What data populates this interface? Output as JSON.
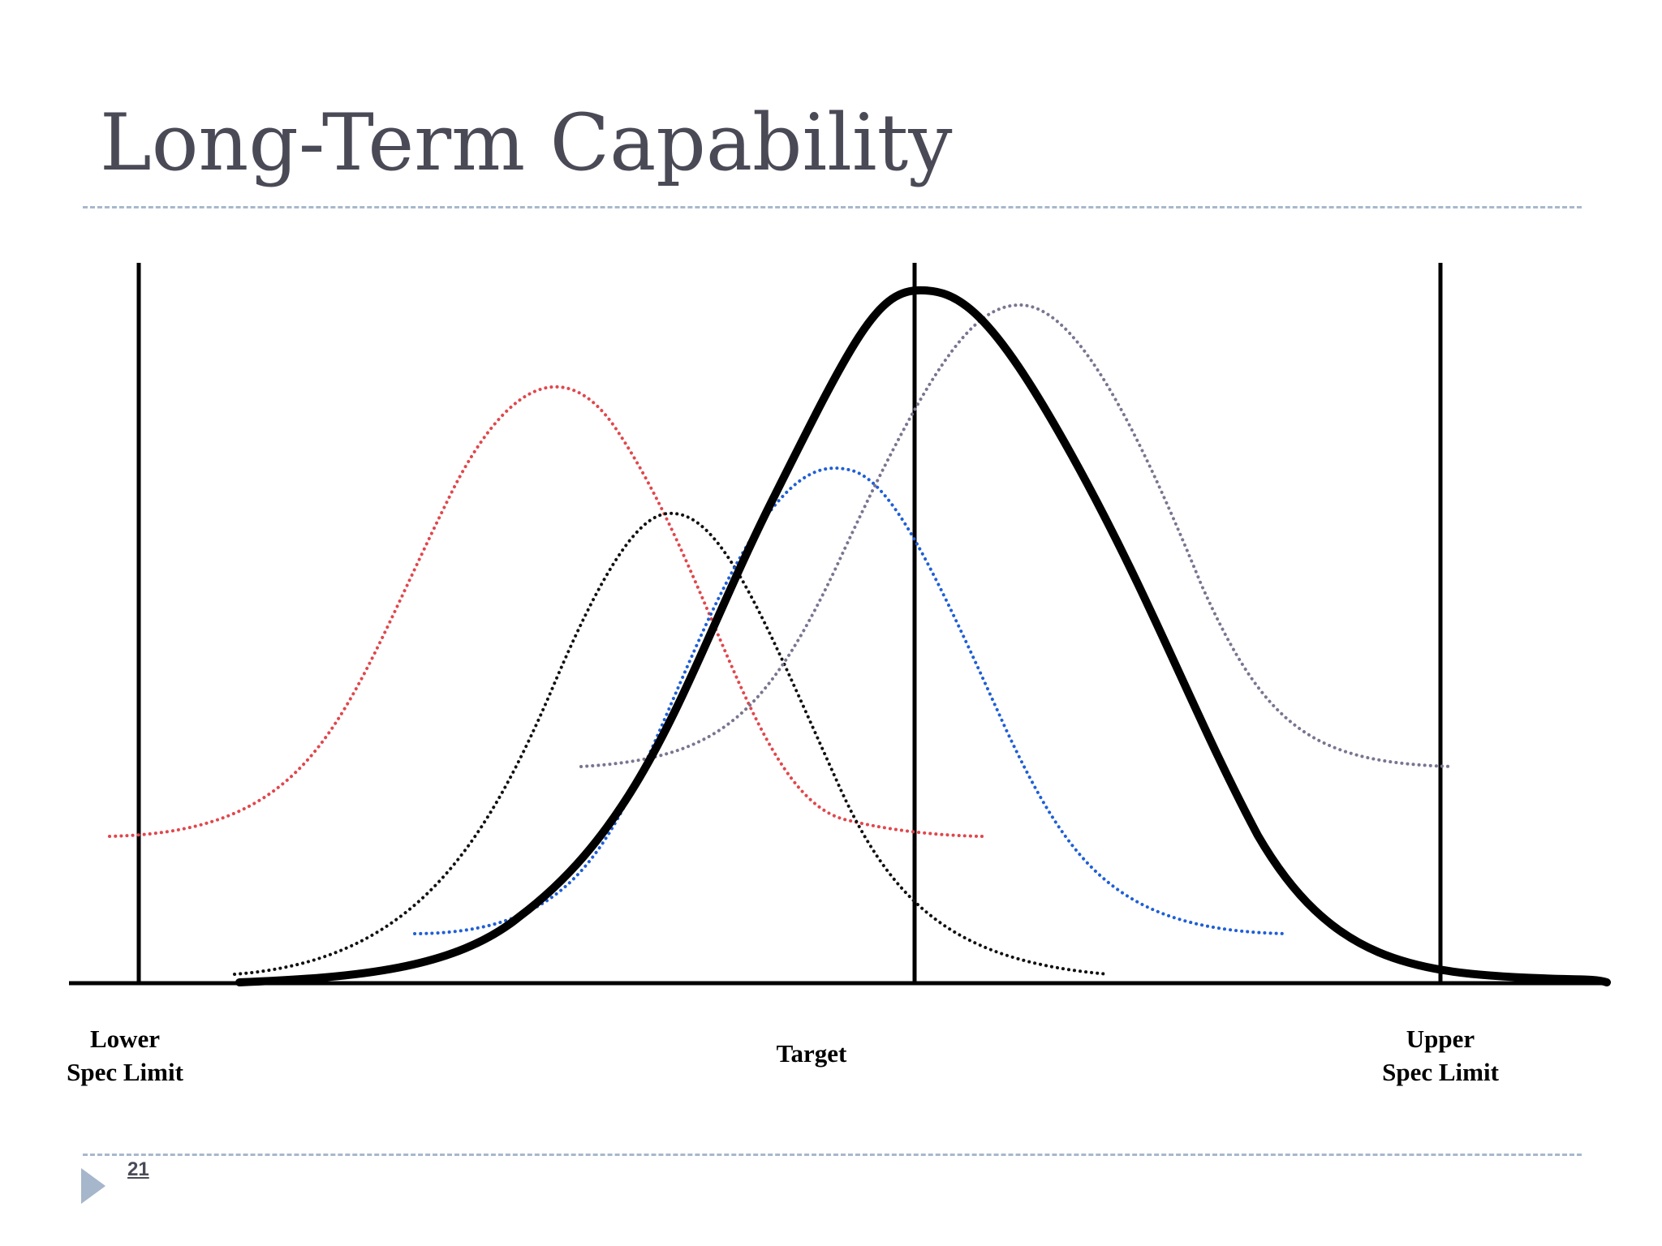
{
  "slide": {
    "title": "Long-Term Capability",
    "page_number": "21"
  },
  "labels": {
    "lower_spec_limit": [
      "Lower",
      "Spec Limit"
    ],
    "target": "Target",
    "upper_spec_limit": [
      "Upper",
      "Spec Limit"
    ]
  },
  "curves": [
    {
      "id": "red-subgroup",
      "color": "#e0474c",
      "style": "dotted"
    },
    {
      "id": "black-subgroup",
      "color": "#111111",
      "style": "dotted"
    },
    {
      "id": "blue-subgroup",
      "color": "#1f5fd6",
      "style": "dotted"
    },
    {
      "id": "gray-subgroup",
      "color": "#7a7590",
      "style": "dotted"
    },
    {
      "id": "long-term-overall",
      "color": "#000000",
      "style": "solid"
    }
  ],
  "decorations": {
    "rule_color": "#a8b8cc",
    "marker_icon": "triangle-right-icon"
  }
}
